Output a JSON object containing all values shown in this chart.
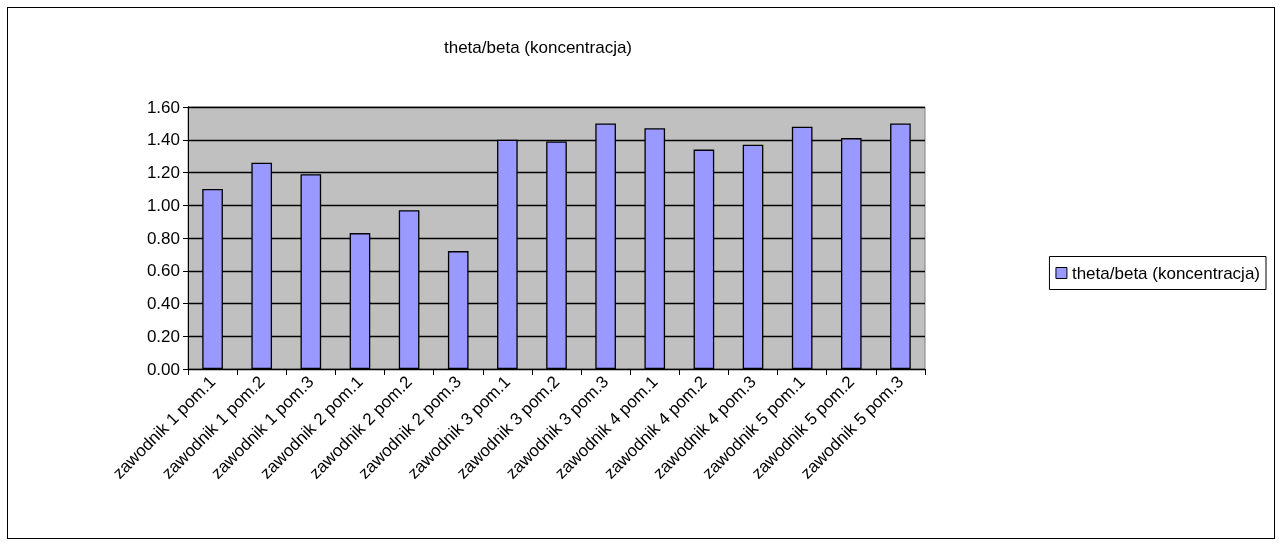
{
  "chart_data": {
    "type": "bar",
    "title": "theta/beta (koncentracja)",
    "categories": [
      "zawodnik 1 pom.1",
      "zawodnik 1 pom.2",
      "zawodnik 1 pom.3",
      "zawodnik 2 pom.1",
      "zawodnik 2 pom.2",
      "zawodnik 2 pom.3",
      "zawodnik 3 pom.1",
      "zawodnik 3 pom.2",
      "zawodnik 3 pom.3",
      "zawodnik 4 pom.1",
      "zawodnik 4 pom.2",
      "zawodnik 4 pom.3",
      "zawodnik 5 pom.1",
      "zawodnik 5 pom.2",
      "zawodnik 5 pom.3"
    ],
    "series": [
      {
        "name": "theta/beta (koncentracja)",
        "color": "#9999ff",
        "values": [
          1.1,
          1.26,
          1.19,
          0.83,
          0.97,
          0.72,
          1.4,
          1.39,
          1.5,
          1.47,
          1.34,
          1.37,
          1.48,
          1.41,
          1.5
        ]
      }
    ],
    "ylim": [
      0,
      1.6
    ],
    "yticks": [
      {
        "value": 0,
        "label": "0.00"
      },
      {
        "value": 0.2,
        "label": "0.20"
      },
      {
        "value": 0.4,
        "label": "0.40"
      },
      {
        "value": 0.6,
        "label": "0.60"
      },
      {
        "value": 0.8,
        "label": "0.80"
      },
      {
        "value": 1,
        "label": "1.00"
      },
      {
        "value": 1.2,
        "label": "1.20"
      },
      {
        "value": 1.4,
        "label": "1.40"
      },
      {
        "value": 1.6,
        "label": "1.60"
      }
    ],
    "grid": "y",
    "legend": "right"
  }
}
